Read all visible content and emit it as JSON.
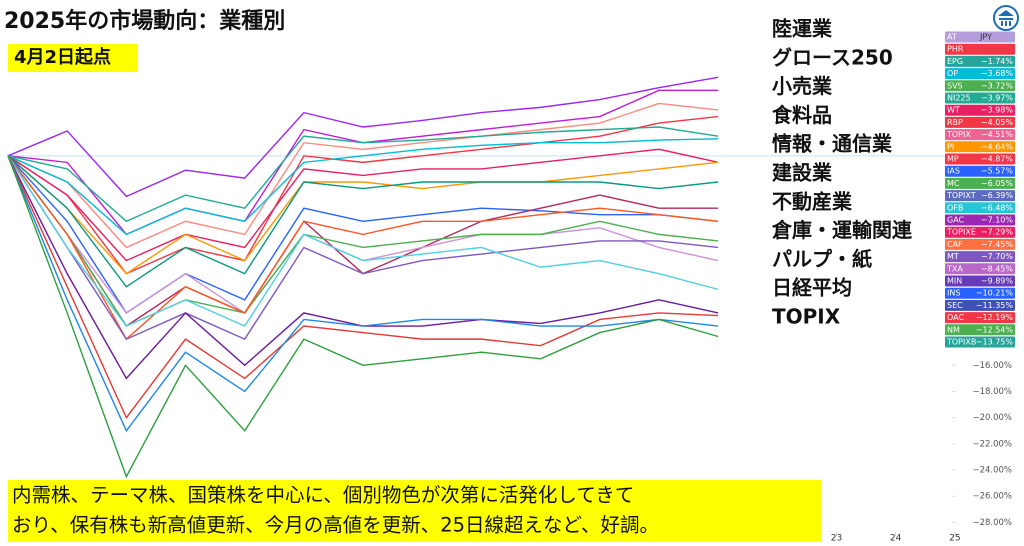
{
  "chart_data": {
    "type": "line",
    "title": "2025年の市場動向：業種別",
    "subtitle": "4月2日起点",
    "sectors": [
      "陸運業",
      "グロース250",
      "小売業",
      "食料品",
      "情報・通信業",
      "建設業",
      "不動産業",
      "倉庫・運輸関連",
      "パルプ・紙",
      "日経平均",
      "TOPIX"
    ],
    "note": [
      "内需株、テーマ株、国策株を中心に、個別物色が次第に活発化してきて",
      "おり、保有株も新高値更新、今月の高値を更新、25日線超えなど、好調。"
    ],
    "currency": "JPY",
    "badges": [
      {
        "name": "AT",
        "color": "#b39ddb"
      },
      {
        "name": "PHR",
        "color": "#f23645"
      },
      {
        "name": "EPG",
        "label": "−1.74%",
        "color": "#26a69a"
      },
      {
        "name": "OP",
        "label": "−3.68%",
        "color": "#00bcd4"
      },
      {
        "name": "SVS",
        "label": "−3.72%",
        "color": "#4caf50"
      },
      {
        "name": "NI225",
        "label": "−3.97%",
        "color": "#22ab94"
      },
      {
        "name": "WT",
        "label": "−3.98%",
        "color": "#e91e63"
      },
      {
        "name": "RBP",
        "label": "−4.05%",
        "color": "#f23645"
      },
      {
        "name": "TOPIX",
        "label": "−4.51%",
        "color": "#f06292"
      },
      {
        "name": "PI",
        "label": "−4.64%",
        "color": "#ff9800"
      },
      {
        "name": "MP",
        "label": "−4.87%",
        "color": "#f23645"
      },
      {
        "name": "IAS",
        "label": "−5.57%",
        "color": "#2962ff"
      },
      {
        "name": "MC",
        "label": "−6.05%",
        "color": "#4caf50"
      },
      {
        "name": "TOPIXT",
        "label": "−6.39%",
        "color": "#5c6bc0"
      },
      {
        "name": "OFB",
        "label": "−6.48%",
        "color": "#26c6da"
      },
      {
        "name": "GAC",
        "label": "−7.10%",
        "color": "#9c27b0"
      },
      {
        "name": "TOPIXE",
        "label": "−7.29%",
        "color": "#e91e63"
      },
      {
        "name": "CAF",
        "label": "−7.45%",
        "color": "#ff7043"
      },
      {
        "name": "MT",
        "label": "−7.70%",
        "color": "#7e57c2"
      },
      {
        "name": "TXA",
        "label": "−8.45%",
        "color": "#ba68c8"
      },
      {
        "name": "MIN",
        "label": "−9.89%",
        "color": "#673ab7"
      },
      {
        "name": "INS",
        "label": "−10.21%",
        "color": "#2962ff"
      },
      {
        "name": "SEC",
        "label": "−11.35%",
        "color": "#3f51b5"
      },
      {
        "name": "OAC",
        "label": "−12.19%",
        "color": "#f23645"
      },
      {
        "name": "NM",
        "label": "−12.54%",
        "color": "#4caf50"
      },
      {
        "name": "TOPIXB",
        "label": "−13.75%",
        "color": "#26a69a"
      }
    ],
    "x": [
      0,
      1,
      2,
      3,
      4,
      5,
      6,
      7,
      8,
      9,
      10,
      11,
      12
    ],
    "xlim": [
      0,
      17
    ],
    "xticks": [
      {
        "value": 14,
        "label": "23"
      },
      {
        "value": 15,
        "label": "24"
      },
      {
        "value": 16,
        "label": "25"
      }
    ],
    "ylim": [
      -29.8,
      11.9
    ],
    "yticks": [
      {
        "value": -16,
        "label": "−16.00%"
      },
      {
        "value": -18,
        "label": "−18.00%"
      },
      {
        "value": -20,
        "label": "−20.00%"
      },
      {
        "value": -22,
        "label": "−22.00%"
      },
      {
        "value": -24,
        "label": "−24.00%"
      },
      {
        "value": -26,
        "label": "−26.00%"
      },
      {
        "value": -28,
        "label": "−28.00%"
      }
    ],
    "series": [
      {
        "color": "#9c27f0",
        "values": [
          0,
          1.9,
          -3.1,
          -1.1,
          -1.7,
          3.3,
          2.2,
          2.7,
          3.3,
          3.7,
          4.3,
          5.2,
          6.0
        ]
      },
      {
        "color": "#c21bd6",
        "values": [
          0,
          -0.5,
          -6,
          -4,
          -5,
          2,
          1,
          1.5,
          2,
          2.5,
          3,
          5,
          5
        ]
      },
      {
        "color": "#ff8a80",
        "values": [
          0,
          -2,
          -7,
          -5,
          -6,
          1,
          0.5,
          1,
          1.5,
          2,
          2.5,
          4,
          3.5
        ]
      },
      {
        "color": "#f23645",
        "values": [
          0,
          -3,
          -9,
          -7,
          -8,
          0,
          -0.5,
          0,
          0.5,
          1,
          1.5,
          2.5,
          3
        ]
      },
      {
        "color": "#22ab94",
        "values": [
          0,
          -1,
          -5,
          -3,
          -4,
          1.5,
          1,
          1.2,
          1.5,
          1.8,
          2,
          2.2,
          1.5
        ]
      },
      {
        "color": "#00bcd4",
        "values": [
          0,
          -2,
          -6,
          -4,
          -5,
          -0.5,
          0,
          0.5,
          0.8,
          1,
          1,
          1.2,
          1.3
        ]
      },
      {
        "color": "#e91e63",
        "values": [
          0,
          -3,
          -8,
          -6,
          -7,
          -1,
          -1.5,
          -1,
          -1,
          -0.5,
          0,
          0.5,
          -0.5
        ]
      },
      {
        "color": "#ff9800",
        "values": [
          0,
          -4,
          -9,
          -6,
          -8,
          -2,
          -2,
          -2.5,
          -2,
          -2,
          -1.5,
          -1,
          -0.5
        ]
      },
      {
        "color": "#089981",
        "values": [
          0,
          -4,
          -10,
          -7,
          -9,
          -2,
          -2.5,
          -2,
          -2,
          -2,
          -2,
          -2.5,
          -2
        ]
      },
      {
        "color": "#2962ff",
        "values": [
          0,
          -5,
          -12,
          -9,
          -11,
          -4,
          -5,
          -4.5,
          -4,
          -4.2,
          -4.5,
          -4.5,
          -5
        ]
      },
      {
        "color": "#b2285b",
        "values": [
          0,
          -6,
          -13,
          -10,
          -12,
          -5,
          -9,
          -7,
          -5,
          -4,
          -3,
          -4,
          -4
        ]
      },
      {
        "color": "#ce93d8",
        "values": [
          0,
          -6,
          -12,
          -9,
          -12,
          -6,
          -8,
          -7,
          -6,
          -6,
          -5.5,
          -7,
          -8
        ]
      },
      {
        "color": "#4caf50",
        "values": [
          0,
          -6,
          -13,
          -11,
          -12,
          -6,
          -7,
          -6.5,
          -6,
          -6,
          -5,
          -6,
          -6.5
        ]
      },
      {
        "color": "#ff5722",
        "values": [
          0,
          -6,
          -14,
          -10,
          -12,
          -5,
          -6,
          -5,
          -5,
          -4.5,
          -4,
          -4.5,
          -5
        ]
      },
      {
        "color": "#7e57c2",
        "values": [
          0,
          -7,
          -14,
          -12,
          -14,
          -7,
          -9,
          -8,
          -7.5,
          -7,
          -6.5,
          -6.5,
          -7
        ]
      },
      {
        "color": "#4dd0e1",
        "values": [
          0,
          -7,
          -13,
          -11,
          -13,
          -6,
          -8,
          -7.5,
          -7,
          -8.5,
          -8,
          -9,
          -10.2
        ]
      },
      {
        "color": "#6a1b9a",
        "values": [
          0,
          -9,
          -17,
          -12,
          -16,
          -12,
          -13,
          -13,
          -12.5,
          -12.8,
          -12,
          -11,
          -12
        ]
      },
      {
        "color": "#e53935",
        "values": [
          0,
          -10,
          -20,
          -14,
          -17,
          -13,
          -13.5,
          -14,
          -14,
          -14.5,
          -12.5,
          -12,
          -12.2
        ]
      },
      {
        "color": "#1e88e5",
        "values": [
          0,
          -11,
          -21,
          -15,
          -18,
          -12.5,
          -13,
          -12.5,
          -12.5,
          -13,
          -13,
          -12.5,
          -13
        ]
      },
      {
        "color": "#2e9e3e",
        "values": [
          0,
          -12,
          -24.5,
          -16,
          -21,
          -14,
          -16,
          -15.5,
          -15,
          -15.5,
          -13.5,
          -12.5,
          -13.8
        ]
      }
    ]
  }
}
